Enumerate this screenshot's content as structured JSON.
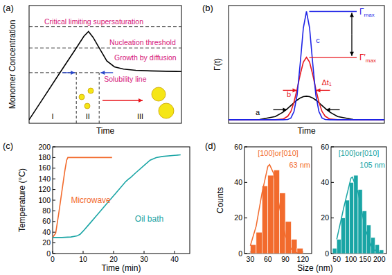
{
  "chart_data": [
    {
      "type": "line",
      "title": "(a)",
      "x_label": "Time",
      "y_label": "Monomer Concentration",
      "tick_labels": false,
      "xlim": [
        0,
        100
      ],
      "ylim": [
        0,
        100
      ],
      "series": [
        {
          "color": "#000000",
          "x": [
            0,
            10,
            20,
            31,
            36,
            39,
            42,
            46,
            51,
            56,
            62,
            70,
            80,
            90,
            100
          ],
          "values": [
            3,
            22.7,
            42.5,
            64,
            74,
            78,
            73,
            64,
            53,
            48,
            46,
            45,
            44.5,
            44.2,
            44
          ]
        }
      ],
      "reference_lines": [
        {
          "label": "Critical limiting supersaturation",
          "value": 82
        },
        {
          "label": "Nucleation threshold",
          "value": 64
        },
        {
          "label": "Solubility line",
          "value": 43
        }
      ],
      "regions": [
        {
          "label": "I",
          "from": 0,
          "to": 31
        },
        {
          "label": "II",
          "from": 31,
          "to": 46
        },
        {
          "label": "III",
          "from": 46,
          "to": 100
        }
      ],
      "annotations": [
        "Growth by diffusion"
      ]
    },
    {
      "type": "line",
      "title": "(b)",
      "x_label": "Time",
      "y_label": "Γ(t)",
      "tick_labels": false,
      "xlim": [
        0,
        100
      ],
      "ylim": [
        0,
        100
      ],
      "series": [
        {
          "name": "a",
          "color": "#000000",
          "x": [
            0,
            20,
            30,
            35,
            38,
            40,
            42,
            44,
            46,
            48,
            50,
            52,
            54,
            56,
            58,
            60,
            62,
            65,
            70,
            80,
            100
          ],
          "values": [
            3,
            3.2,
            5.7,
            9.5,
            12.7,
            15.1,
            17.5,
            19.7,
            21.5,
            22.6,
            23,
            22.6,
            21.5,
            19.7,
            17.5,
            15.1,
            12.7,
            9.5,
            5.7,
            3.2,
            3
          ]
        },
        {
          "name": "b",
          "color": "#e8151b",
          "x": [
            0,
            20,
            30,
            35,
            38,
            40,
            42,
            44,
            46,
            48,
            50,
            52,
            54,
            56,
            58,
            60,
            62,
            65,
            70,
            80,
            100
          ],
          "values": [
            3,
            3,
            3,
            3.6,
            6,
            10,
            18,
            29,
            41.5,
            52,
            56,
            52,
            41.5,
            29,
            18,
            10,
            6,
            3.6,
            3,
            3,
            3
          ]
        },
        {
          "name": "c",
          "color": "#1d22e6",
          "x": [
            0,
            20,
            30,
            35,
            38,
            40,
            42,
            44,
            46,
            48,
            50,
            52,
            54,
            56,
            58,
            60,
            62,
            65,
            70,
            80,
            100
          ],
          "values": [
            3,
            3,
            3,
            3,
            3.2,
            4.5,
            10,
            24,
            51,
            81,
            95,
            81,
            51,
            24,
            10,
            4.5,
            3.2,
            3,
            3,
            3,
            3
          ]
        }
      ],
      "annotations": [
        "Γmax",
        "Γ′max",
        "Δt₁"
      ]
    },
    {
      "type": "line",
      "title": "(c)",
      "x_label": "Time (min)",
      "y_label": "Temperature (°C)",
      "xlim": [
        0,
        45
      ],
      "ylim": [
        0,
        200
      ],
      "xticks": [
        0,
        10,
        20,
        30,
        40
      ],
      "yticks": [
        0,
        20,
        40,
        60,
        80,
        100,
        120,
        140,
        160,
        180,
        200
      ],
      "series": [
        {
          "name": "Microwave",
          "color": "#f26b2d",
          "x": [
            0,
            1,
            2,
            3,
            4,
            4.6,
            5,
            10,
            15,
            19.5
          ],
          "values": [
            30,
            38,
            75,
            115,
            155,
            175,
            180,
            180,
            180,
            180
          ]
        },
        {
          "name": "Oil bath",
          "color": "#1aa5a5",
          "x": [
            0,
            3,
            6,
            8,
            9,
            10,
            12,
            15,
            18,
            21,
            24,
            25,
            25.5,
            27,
            30,
            32,
            34,
            36,
            40,
            42
          ],
          "values": [
            30,
            30,
            31,
            33,
            36,
            42,
            55,
            75,
            95,
            115,
            135,
            140,
            142,
            150,
            165,
            175,
            180,
            182,
            184,
            185
          ]
        }
      ]
    },
    {
      "type": "histogram",
      "title": "(d)",
      "x_label": "Size (nm)",
      "y_label": "Counts",
      "color": "#f26b2d",
      "bins": [
        30,
        40,
        50,
        60,
        70,
        80,
        90,
        100,
        110,
        120
      ],
      "counts": [
        5,
        12,
        38,
        44,
        47,
        34,
        18,
        8,
        3
      ],
      "fit": {
        "x": [
          30,
          40,
          50,
          60,
          63,
          70,
          80,
          90,
          100,
          110,
          120
        ],
        "values": [
          4.4,
          15.4,
          34,
          49,
          50,
          45,
          26,
          10,
          2.4,
          0.4,
          0
        ]
      },
      "xlim": [
        20,
        135
      ],
      "ylim": [
        0,
        60
      ],
      "xticks": [
        30,
        60,
        90,
        120
      ],
      "yticks": [
        0,
        20,
        40,
        60
      ],
      "annotations": [
        "[100]or[010]",
        "63 nm"
      ]
    },
    {
      "type": "histogram",
      "color": "#1aa5a5",
      "bins": [
        35,
        50,
        65,
        80,
        95,
        110,
        125,
        140,
        155,
        170,
        185,
        200,
        215
      ],
      "counts": [
        3,
        8,
        20,
        30,
        40,
        44,
        36,
        24,
        16,
        9,
        5,
        2
      ],
      "fit": {
        "x": [
          50,
          75,
          100,
          105,
          125,
          150,
          175,
          200
        ],
        "values": [
          8,
          26,
          42.4,
          43,
          34.5,
          14,
          2.8,
          0.3
        ]
      },
      "xlim": [
        30,
        225
      ],
      "ylim": [
        0,
        60
      ],
      "xticks": [
        50,
        100,
        150,
        200
      ],
      "yticks": [
        0,
        20,
        40,
        60
      ],
      "annotations": [
        "[100]or[010]",
        "105 nm"
      ]
    }
  ]
}
